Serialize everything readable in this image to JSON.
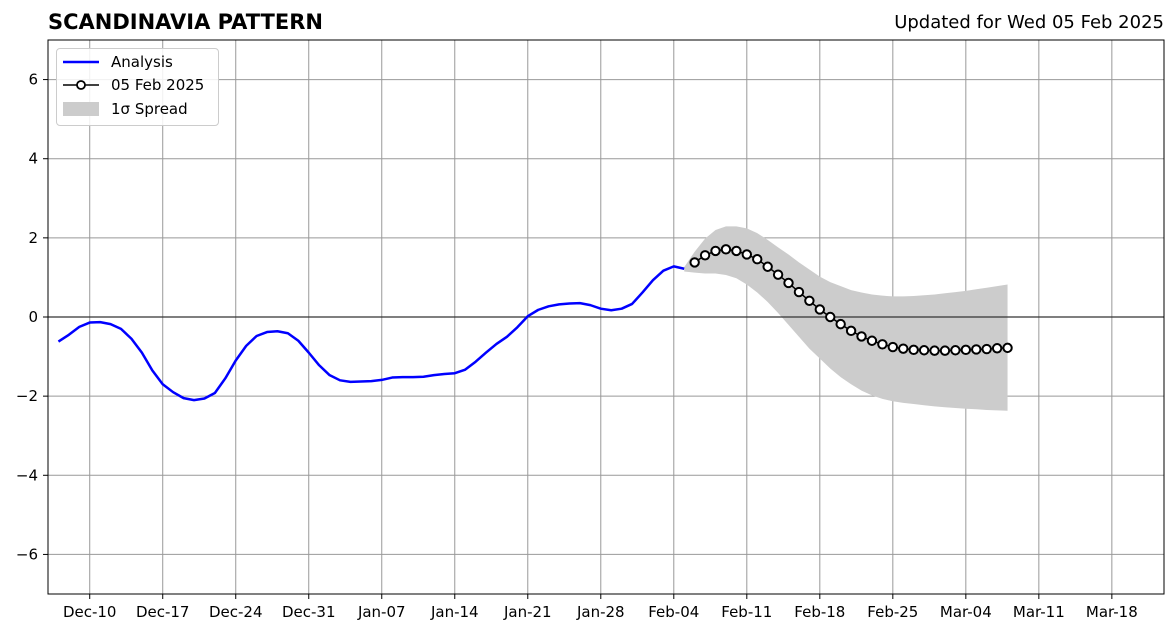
{
  "header": {
    "title": "SCANDINAVIA PATTERN",
    "updated": "Updated for Wed 05 Feb 2025"
  },
  "colors": {
    "analysis": "#0000ff",
    "forecast_line": "#000000",
    "forecast_marker_fill": "#ffffff",
    "spread": "#cccccc",
    "grid": "#999999"
  },
  "chart_data": {
    "type": "line",
    "x_axis": {
      "type": "date",
      "range": [
        "2024-12-06",
        "2025-03-23"
      ],
      "ticks": [
        "2024-12-10",
        "2024-12-17",
        "2024-12-24",
        "2024-12-31",
        "2025-01-07",
        "2025-01-14",
        "2025-01-21",
        "2025-01-28",
        "2025-02-04",
        "2025-02-11",
        "2025-02-18",
        "2025-02-25",
        "2025-03-04",
        "2025-03-11",
        "2025-03-18"
      ],
      "tick_labels": [
        "Dec-10",
        "Dec-17",
        "Dec-24",
        "Dec-31",
        "Jan-07",
        "Jan-14",
        "Jan-21",
        "Jan-28",
        "Feb-04",
        "Feb-11",
        "Feb-18",
        "Feb-25",
        "Mar-04",
        "Mar-11",
        "Mar-18"
      ]
    },
    "y_axis": {
      "range": [
        -7,
        7
      ],
      "ticks": [
        -6,
        -4,
        -2,
        0,
        2,
        4,
        6
      ],
      "tick_labels": [
        "−6",
        "−4",
        "−2",
        "0",
        "2",
        "4",
        "6"
      ]
    },
    "grid": true,
    "zero_line": true,
    "legend": {
      "placement": "top-left",
      "entries": [
        "Analysis",
        "05 Feb 2025",
        "1σ Spread"
      ]
    },
    "series": [
      {
        "name": "Analysis",
        "style": "line",
        "points": [
          [
            "2024-12-07",
            -0.62
          ],
          [
            "2024-12-08",
            -0.45
          ],
          [
            "2024-12-09",
            -0.25
          ],
          [
            "2024-12-10",
            -0.14
          ],
          [
            "2024-12-11",
            -0.13
          ],
          [
            "2024-12-12",
            -0.18
          ],
          [
            "2024-12-13",
            -0.3
          ],
          [
            "2024-12-14",
            -0.55
          ],
          [
            "2024-12-15",
            -0.9
          ],
          [
            "2024-12-16",
            -1.35
          ],
          [
            "2024-12-17",
            -1.7
          ],
          [
            "2024-12-18",
            -1.9
          ],
          [
            "2024-12-19",
            -2.05
          ],
          [
            "2024-12-20",
            -2.1
          ],
          [
            "2024-12-21",
            -2.06
          ],
          [
            "2024-12-22",
            -1.92
          ],
          [
            "2024-12-23",
            -1.55
          ],
          [
            "2024-12-24",
            -1.1
          ],
          [
            "2024-12-25",
            -0.73
          ],
          [
            "2024-12-26",
            -0.48
          ],
          [
            "2024-12-27",
            -0.38
          ],
          [
            "2024-12-28",
            -0.36
          ],
          [
            "2024-12-29",
            -0.41
          ],
          [
            "2024-12-30",
            -0.6
          ],
          [
            "2024-12-31",
            -0.9
          ],
          [
            "2025-01-01",
            -1.22
          ],
          [
            "2025-01-02",
            -1.47
          ],
          [
            "2025-01-03",
            -1.6
          ],
          [
            "2025-01-04",
            -1.64
          ],
          [
            "2025-01-05",
            -1.63
          ],
          [
            "2025-01-06",
            -1.62
          ],
          [
            "2025-01-07",
            -1.59
          ],
          [
            "2025-01-08",
            -1.53
          ],
          [
            "2025-01-09",
            -1.52
          ],
          [
            "2025-01-10",
            -1.52
          ],
          [
            "2025-01-11",
            -1.51
          ],
          [
            "2025-01-12",
            -1.47
          ],
          [
            "2025-01-13",
            -1.44
          ],
          [
            "2025-01-14",
            -1.42
          ],
          [
            "2025-01-15",
            -1.33
          ],
          [
            "2025-01-16",
            -1.13
          ],
          [
            "2025-01-17",
            -0.9
          ],
          [
            "2025-01-18",
            -0.68
          ],
          [
            "2025-01-19",
            -0.5
          ],
          [
            "2025-01-20",
            -0.26
          ],
          [
            "2025-01-21",
            0.02
          ],
          [
            "2025-01-22",
            0.18
          ],
          [
            "2025-01-23",
            0.27
          ],
          [
            "2025-01-24",
            0.32
          ],
          [
            "2025-01-25",
            0.34
          ],
          [
            "2025-01-26",
            0.35
          ],
          [
            "2025-01-27",
            0.3
          ],
          [
            "2025-01-28",
            0.21
          ],
          [
            "2025-01-29",
            0.17
          ],
          [
            "2025-01-30",
            0.21
          ],
          [
            "2025-01-31",
            0.33
          ],
          [
            "2025-02-01",
            0.62
          ],
          [
            "2025-02-02",
            0.93
          ],
          [
            "2025-02-03",
            1.17
          ],
          [
            "2025-02-04",
            1.28
          ],
          [
            "2025-02-05",
            1.22
          ]
        ]
      },
      {
        "name": "05 Feb 2025",
        "style": "line-markers",
        "points": [
          [
            "2025-02-06",
            1.38
          ],
          [
            "2025-02-07",
            1.56
          ],
          [
            "2025-02-08",
            1.67
          ],
          [
            "2025-02-09",
            1.71
          ],
          [
            "2025-02-10",
            1.67
          ],
          [
            "2025-02-11",
            1.58
          ],
          [
            "2025-02-12",
            1.46
          ],
          [
            "2025-02-13",
            1.27
          ],
          [
            "2025-02-14",
            1.07
          ],
          [
            "2025-02-15",
            0.86
          ],
          [
            "2025-02-16",
            0.63
          ],
          [
            "2025-02-17",
            0.41
          ],
          [
            "2025-02-18",
            0.19
          ],
          [
            "2025-02-19",
            0.0
          ],
          [
            "2025-02-20",
            -0.18
          ],
          [
            "2025-02-21",
            -0.35
          ],
          [
            "2025-02-22",
            -0.49
          ],
          [
            "2025-02-23",
            -0.6
          ],
          [
            "2025-02-24",
            -0.69
          ],
          [
            "2025-02-25",
            -0.76
          ],
          [
            "2025-02-26",
            -0.8
          ],
          [
            "2025-02-27",
            -0.83
          ],
          [
            "2025-02-28",
            -0.84
          ],
          [
            "2025-03-01",
            -0.85
          ],
          [
            "2025-03-02",
            -0.85
          ],
          [
            "2025-03-03",
            -0.84
          ],
          [
            "2025-03-04",
            -0.83
          ],
          [
            "2025-03-05",
            -0.82
          ],
          [
            "2025-03-06",
            -0.81
          ],
          [
            "2025-03-07",
            -0.79
          ],
          [
            "2025-03-08",
            -0.78
          ]
        ]
      },
      {
        "name": "1σ Spread",
        "style": "band",
        "points": [
          [
            "2025-02-05",
            1.15,
            1.26
          ],
          [
            "2025-02-06",
            1.12,
            1.65
          ],
          [
            "2025-02-07",
            1.1,
            1.98
          ],
          [
            "2025-02-08",
            1.1,
            2.2
          ],
          [
            "2025-02-09",
            1.06,
            2.29
          ],
          [
            "2025-02-10",
            0.98,
            2.29
          ],
          [
            "2025-02-11",
            0.82,
            2.24
          ],
          [
            "2025-02-12",
            0.62,
            2.12
          ],
          [
            "2025-02-13",
            0.38,
            1.95
          ],
          [
            "2025-02-14",
            0.1,
            1.76
          ],
          [
            "2025-02-15",
            -0.2,
            1.58
          ],
          [
            "2025-02-16",
            -0.5,
            1.38
          ],
          [
            "2025-02-17",
            -0.8,
            1.2
          ],
          [
            "2025-02-18",
            -1.05,
            1.02
          ],
          [
            "2025-02-19",
            -1.3,
            0.88
          ],
          [
            "2025-02-20",
            -1.52,
            0.78
          ],
          [
            "2025-02-21",
            -1.7,
            0.68
          ],
          [
            "2025-02-22",
            -1.86,
            0.62
          ],
          [
            "2025-02-23",
            -1.98,
            0.57
          ],
          [
            "2025-02-24",
            -2.07,
            0.54
          ],
          [
            "2025-02-25",
            -2.13,
            0.52
          ],
          [
            "2025-02-26",
            -2.17,
            0.52
          ],
          [
            "2025-02-27",
            -2.2,
            0.53
          ],
          [
            "2025-02-28",
            -2.23,
            0.55
          ],
          [
            "2025-03-01",
            -2.26,
            0.57
          ],
          [
            "2025-03-02",
            -2.28,
            0.6
          ],
          [
            "2025-03-03",
            -2.3,
            0.63
          ],
          [
            "2025-03-04",
            -2.32,
            0.66
          ],
          [
            "2025-03-05",
            -2.33,
            0.7
          ],
          [
            "2025-03-06",
            -2.35,
            0.74
          ],
          [
            "2025-03-07",
            -2.36,
            0.78
          ],
          [
            "2025-03-08",
            -2.37,
            0.82
          ]
        ]
      }
    ]
  }
}
